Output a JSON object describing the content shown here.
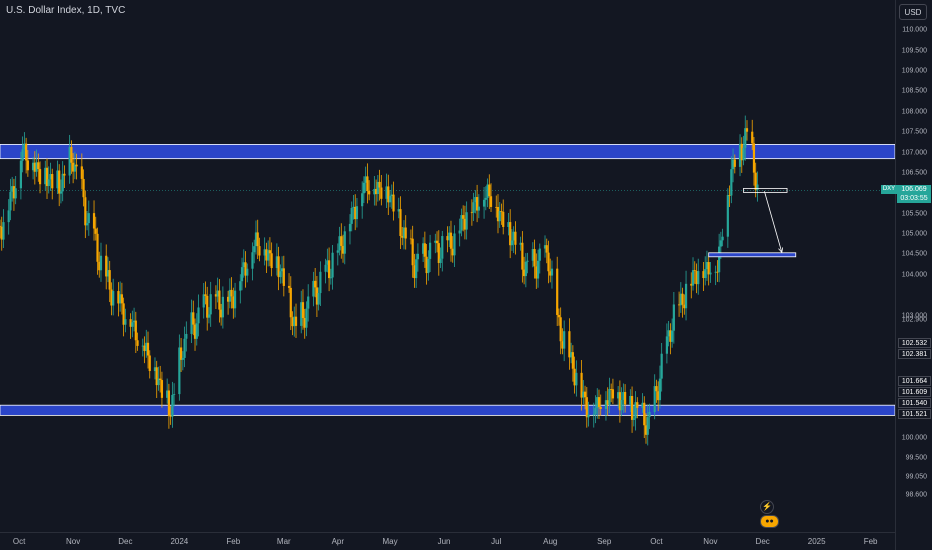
{
  "header": {
    "title": "U.S. Dollar Index, 1D, TVC"
  },
  "currency": "USD",
  "price_axis": {
    "ticks": [
      "110.000",
      "109.500",
      "109.000",
      "108.500",
      "108.000",
      "107.500",
      "107.000",
      "106.500",
      "106.000",
      "105.500",
      "105.000",
      "104.500",
      "104.000",
      "103.000",
      "102.900",
      "100.500",
      "100.000",
      "99.500",
      "99.050",
      "98.600"
    ],
    "last_price": "106.069",
    "countdown": "03:03:55",
    "symbol": "DXY",
    "level_tags": [
      "102.532",
      "102.381",
      "101.664",
      "101.609",
      "101.540",
      "101.521"
    ]
  },
  "time_axis": {
    "labels": [
      "Oct",
      "Nov",
      "Dec",
      "2024",
      "Feb",
      "Mar",
      "Apr",
      "May",
      "Jun",
      "Jul",
      "Aug",
      "Sep",
      "Oct",
      "Nov",
      "Dec",
      "2025",
      "Feb"
    ]
  },
  "colors": {
    "up": "#26a69a",
    "down": "#f7a600",
    "zone": "#2b45c8",
    "background": "#131722",
    "axis_text": "#b2b5be"
  },
  "chart_data": {
    "type": "candlestick",
    "title": "U.S. Dollar Index, 1D, TVC",
    "xlabel": "",
    "ylabel": "USD",
    "ylim": [
      98.4,
      110.4
    ],
    "x_range": [
      "2023-09-20",
      "2025-02-15"
    ],
    "last_price": 106.069,
    "series": [
      {
        "name": "DXY",
        "close_path": [
          [
            "2023-09-20",
            105.2
          ],
          [
            "2023-09-25",
            105.7
          ],
          [
            "2023-10-03",
            107.1
          ],
          [
            "2023-10-12",
            106.6
          ],
          [
            "2023-10-24",
            106.2
          ],
          [
            "2023-11-01",
            106.9
          ],
          [
            "2023-11-08",
            105.6
          ],
          [
            "2023-11-20",
            103.9
          ],
          [
            "2023-12-01",
            103.1
          ],
          [
            "2023-12-13",
            102.2
          ],
          [
            "2023-12-27",
            100.7
          ],
          [
            "2024-01-03",
            102.3
          ],
          [
            "2024-01-16",
            103.3
          ],
          [
            "2024-01-30",
            103.4
          ],
          [
            "2024-02-14",
            104.9
          ],
          [
            "2024-02-28",
            104.2
          ],
          [
            "2024-03-08",
            102.7
          ],
          [
            "2024-03-19",
            103.6
          ],
          [
            "2024-04-01",
            104.6
          ],
          [
            "2024-04-16",
            106.3
          ],
          [
            "2024-04-30",
            106.1
          ],
          [
            "2024-05-15",
            104.3
          ],
          [
            "2024-05-27",
            104.6
          ],
          [
            "2024-06-07",
            104.9
          ],
          [
            "2024-06-14",
            105.6
          ],
          [
            "2024-06-26",
            106.1
          ],
          [
            "2024-07-10",
            105.0
          ],
          [
            "2024-07-18",
            104.2
          ],
          [
            "2024-07-31",
            104.5
          ],
          [
            "2024-08-05",
            102.9
          ],
          [
            "2024-08-23",
            100.7
          ],
          [
            "2024-09-06",
            101.2
          ],
          [
            "2024-09-27",
            100.4
          ],
          [
            "2024-10-10",
            102.9
          ],
          [
            "2024-10-23",
            104.1
          ],
          [
            "2024-11-05",
            104.3
          ],
          [
            "2024-11-13",
            106.6
          ],
          [
            "2024-11-22",
            107.5
          ],
          [
            "2024-11-26",
            106.8
          ],
          [
            "2024-11-28",
            106.07
          ]
        ]
      }
    ],
    "zones": [
      {
        "from": 106.85,
        "to": 107.2
      },
      {
        "from": 100.55,
        "to": 100.8
      }
    ],
    "boxes": [
      {
        "x0": "2024-11-20",
        "x1": "2024-12-15",
        "y0": 106.02,
        "y1": 106.12,
        "color": "#ffffff"
      },
      {
        "x0": "2024-10-31",
        "x1": "2024-12-20",
        "y0": 104.46,
        "y1": 104.54,
        "color": "#2b45c8"
      }
    ],
    "arrows": [
      {
        "points": [
          [
            "2024-12-02",
            106.05
          ],
          [
            "2024-12-12",
            104.55
          ]
        ]
      }
    ]
  }
}
